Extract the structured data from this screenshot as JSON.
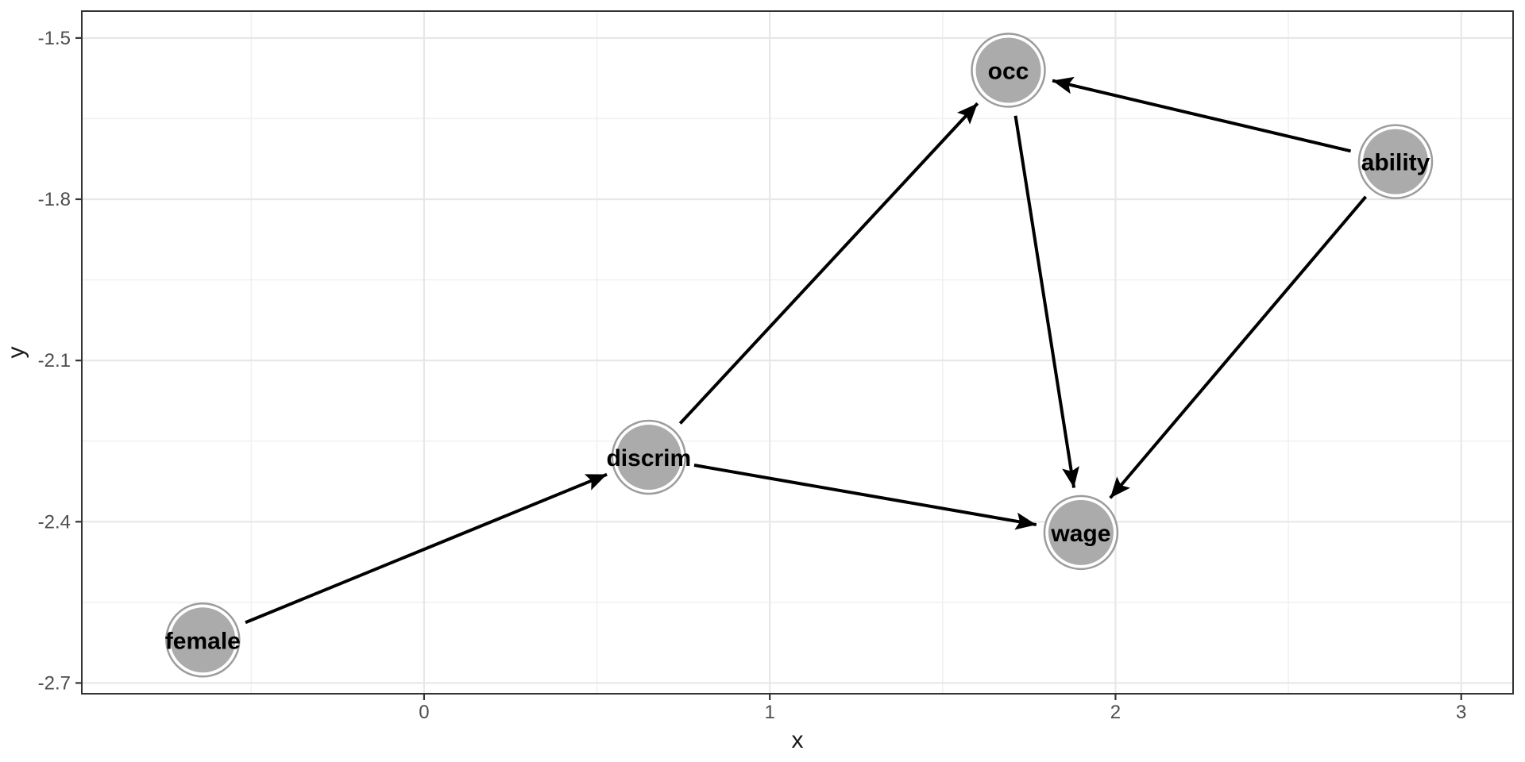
{
  "chart_data": {
    "type": "scatter",
    "subtype": "directed-acyclic-graph",
    "title": "",
    "xlabel": "x",
    "ylabel": "y",
    "xlim": [
      -0.99,
      3.15
    ],
    "ylim": [
      -2.72,
      -1.45
    ],
    "x_ticks": [
      0,
      1,
      2,
      3
    ],
    "x_tick_labels": [
      "0",
      "1",
      "2",
      "3"
    ],
    "y_ticks": [
      -1.5,
      -1.8,
      -2.1,
      -2.4,
      -2.7
    ],
    "y_tick_labels": [
      "-1.5",
      "-1.8",
      "-2.1",
      "-2.4",
      "-2.7"
    ],
    "x_minor_gridlines": [
      -0.5,
      0.5,
      1.5,
      2.5
    ],
    "y_minor_gridlines": [
      -1.65,
      -1.95,
      -2.25,
      -2.55
    ],
    "grid": true,
    "legend": false,
    "nodes": [
      {
        "id": "female",
        "label": "female",
        "x": -0.64,
        "y": -2.62
      },
      {
        "id": "discrim",
        "label": "discrim",
        "x": 0.65,
        "y": -2.28
      },
      {
        "id": "occ",
        "label": "occ",
        "x": 1.69,
        "y": -1.56
      },
      {
        "id": "wage",
        "label": "wage",
        "x": 1.9,
        "y": -2.42
      },
      {
        "id": "ability",
        "label": "ability",
        "x": 2.81,
        "y": -1.73
      }
    ],
    "edges": [
      {
        "from": "female",
        "to": "discrim"
      },
      {
        "from": "discrim",
        "to": "occ"
      },
      {
        "from": "discrim",
        "to": "wage"
      },
      {
        "from": "occ",
        "to": "wage"
      },
      {
        "from": "ability",
        "to": "occ"
      },
      {
        "from": "ability",
        "to": "wage"
      }
    ]
  },
  "style": {
    "background": "#ffffff",
    "panel_background": "#ffffff",
    "panel_border": "#333333",
    "grid_major": "#e7e7e7",
    "grid_minor": "#f1f1f1",
    "tick_mark": "#333333",
    "tick_label_color": "#4d4d4d",
    "axis_title_color": "#1a1a1a",
    "node_fill": "#ababab",
    "node_ring": "#ffffff",
    "node_stroke": "#9c9c9c",
    "node_label_color": "#000000",
    "edge_color": "#000000"
  }
}
